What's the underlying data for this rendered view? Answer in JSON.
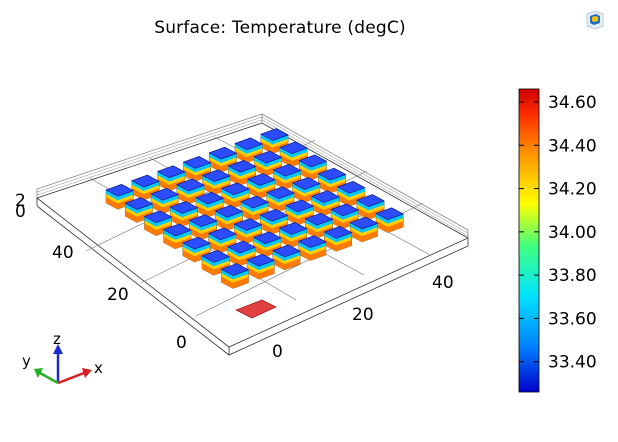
{
  "plot": {
    "title": "Surface: Temperature (degC)"
  },
  "app_icon": "comsol-logo-icon",
  "axes3d": {
    "y_ticks": [
      "40",
      "20",
      "0"
    ],
    "x_ticks": [
      "0",
      "20",
      "40"
    ],
    "z_ticks": [
      "2",
      "0"
    ]
  },
  "triad": {
    "x": "x",
    "y": "y",
    "z": "z"
  },
  "colorbar": {
    "min": 33.26,
    "max": 34.66,
    "ticks": [
      "34.60",
      "34.40",
      "34.20",
      "34.00",
      "33.80",
      "33.60",
      "33.40"
    ],
    "colors": [
      "#0000cc",
      "#0080ff",
      "#00e5ff",
      "#40ff80",
      "#ffff00",
      "#ff9900",
      "#ff2a00",
      "#cc0000"
    ]
  }
}
